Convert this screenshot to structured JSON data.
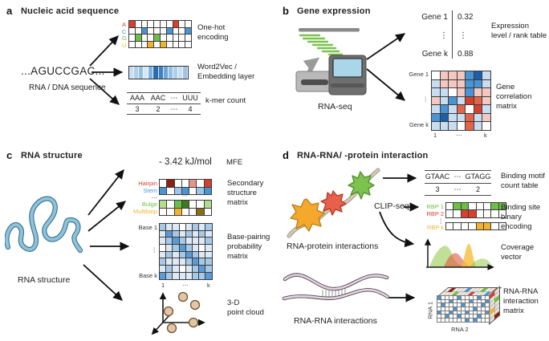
{
  "palette": {
    "w": "#ffffff",
    "R": "#d6402c",
    "R2": "#e2644a",
    "R3": "#8e2012",
    "r": "#e9928a",
    "pr": "#f4c8c0",
    "B": "#4a94d4",
    "B3": "#1e5fa9",
    "b": "#bcd8ee",
    "lb": "#9cc6e8",
    "pb": "#c8ddf0",
    "G": "#6cbf47",
    "G3": "#3c7a1e",
    "g": "#b3dc8f",
    "Y": "#f2b32c",
    "O": "#8a6d14",
    "p1": "#ddeaf6",
    "p2": "#a6c9e8",
    "p3": "#5b9bd5"
  },
  "panels": {
    "a": {
      "tag": "a",
      "title": "Nucleic acid sequence",
      "sequence": "...AGUCCGAC...",
      "sequence_caption": "RNA / DNA sequence",
      "onehot": {
        "label": "One-hot\nencoding",
        "row_labels": [
          "A",
          "C",
          "G",
          "U"
        ],
        "grid": {
          "cw": 7.8,
          "ch": 8.6,
          "cells": [
            [
              "R",
              "w",
              "w",
              "w",
              "w",
              "w",
              "w",
              "R",
              "w",
              "w"
            ],
            [
              "w",
              "w",
              "B",
              "w",
              "w",
              "w",
              "B",
              "w",
              "w",
              "B"
            ],
            [
              "w",
              "G",
              "w",
              "w",
              "G",
              "w",
              "w",
              "w",
              "w",
              "w"
            ],
            [
              "w",
              "w",
              "w",
              "Y",
              "w",
              "Y",
              "w",
              "w",
              "w",
              "w"
            ]
          ]
        }
      },
      "word2vec": {
        "label": "Word2Vec /\nEmbedding layer",
        "grid": {
          "cw": 6.1,
          "ch": 15,
          "cells": [
            [
              "#c9def2",
              "#aecfea",
              "#93c0e2",
              "#d5e6f5",
              "#7fb2dd",
              "#2b6cb0",
              "#3f80c0",
              "#6da6d6",
              "#93c0e2",
              "#aecfea",
              "#c9def2",
              "#9cc4e6"
            ]
          ]
        }
      },
      "kmer": {
        "headers": [
          "AAA",
          "AAC",
          "⋯",
          "UUU"
        ],
        "values": [
          "3",
          "2",
          "⋯",
          "4"
        ],
        "label": "k-mer count"
      }
    },
    "b": {
      "tag": "b",
      "title": "Gene expression",
      "machine_label": "RNA-seq",
      "expression": {
        "rows": [
          [
            "Gene 1",
            "0.32"
          ],
          [
            "⋮",
            "⋮"
          ],
          [
            "Gene k",
            "0.88"
          ]
        ],
        "label": "Expression\nlevel / rank table"
      },
      "correlation": {
        "row_labels": [
          "Gene 1",
          "⋮",
          "Gene k"
        ],
        "col_labels": [
          "1",
          "⋯",
          "k"
        ],
        "label": "Gene correlation\nmatrix",
        "grid": {
          "cw": 10.5,
          "ch": 10.5,
          "cells": [
            [
              "w",
              "pr",
              "pr",
              "pr",
              "B",
              "B3",
              "pb"
            ],
            [
              "pb",
              "pr",
              "pr",
              "pr",
              "B",
              "B",
              "pb"
            ],
            [
              "pb",
              "pb",
              "w",
              "pr",
              "B",
              "pr",
              "pr"
            ],
            [
              "pr",
              "pb",
              "B",
              "pb",
              "R",
              "R2",
              "pr"
            ],
            [
              "pb",
              "B",
              "pb",
              "R2",
              "w",
              "R",
              "pb"
            ],
            [
              "B",
              "B3",
              "pb",
              "pb",
              "R2",
              "pb",
              "pr"
            ],
            [
              "pb",
              "pb",
              "pb",
              "w",
              "R2",
              "pb",
              "w"
            ]
          ]
        }
      }
    },
    "c": {
      "tag": "c",
      "title": "RNA structure",
      "structure_label": "RNA structure",
      "mfe": {
        "value": "- 3.42 kJ/mol",
        "label": "MFE"
      },
      "secondary": {
        "row_labels": [
          "Hairpin",
          "Stem",
          "⋯",
          "Bulge",
          "Multiloop"
        ],
        "dots": "⋯",
        "label": "Secondary\nstructure\nmatrix",
        "grid_top": {
          "cw": 9.3,
          "ch": 9.5,
          "cells": [
            [
              "w",
              "R3",
              "w",
              "w",
              "r",
              "w",
              "R"
            ],
            [
              "B",
              "w",
              "lb",
              "B",
              "w",
              "lb",
              "B"
            ]
          ]
        },
        "grid_bottom": {
          "cw": 9.3,
          "ch": 9.5,
          "cells": [
            [
              "g",
              "w",
              "G",
              "G3",
              "w",
              "w",
              "g"
            ],
            [
              "w",
              "w",
              "Y",
              "w",
              "w",
              "O",
              "w"
            ]
          ]
        }
      },
      "bpp": {
        "row_labels": [
          "Base 1",
          "⋮",
          "Base k"
        ],
        "col_labels": [
          "1",
          "⋯",
          "k"
        ],
        "label": "Base-pairing\nprobability\nmatrix",
        "grid": {
          "cw": 8.2,
          "ch": 8.7,
          "cells": [
            [
              "p2",
              "p1",
              "p1",
              "w",
              "p1",
              "p2",
              "p1",
              "p2"
            ],
            [
              "p1",
              "p3",
              "p2",
              "p1",
              "p2",
              "p1",
              "p2",
              "p1"
            ],
            [
              "p1",
              "p2",
              "p3",
              "p2",
              "p1",
              "p1",
              "p1",
              "p2"
            ],
            [
              "w",
              "p1",
              "p2",
              "p3",
              "p2",
              "p1",
              "w",
              "p1"
            ],
            [
              "p1",
              "p2",
              "p1",
              "p2",
              "p3",
              "p2",
              "p1",
              "p1"
            ],
            [
              "p2",
              "p1",
              "p1",
              "p1",
              "p2",
              "p3",
              "p2",
              "p2"
            ],
            [
              "p1",
              "p2",
              "p1",
              "w",
              "p1",
              "p2",
              "p3",
              "p2"
            ],
            [
              "p3",
              "p2",
              "p1",
              "p1",
              "p1",
              "p2",
              "p2",
              "p3"
            ]
          ]
        }
      },
      "pointcloud": {
        "label": "3-D\npoint cloud"
      }
    },
    "d": {
      "tag": "d",
      "title": "RNA-RNA/ -protein interaction",
      "rna_protein_label": "RNA-protein interactions",
      "clipseq": "CLIP-seq",
      "motif": {
        "headers": [
          "GTAAC",
          "⋯",
          "GTAGG"
        ],
        "values": [
          "3",
          "⋯",
          "2"
        ],
        "label": "Binding motif\ncount table"
      },
      "binding": {
        "row_labels": [
          "RBP 1",
          "RBP 2",
          "⋮",
          "RBP k"
        ],
        "label": "Binding site\nbinary encoding",
        "rbp1": {
          "cw": 9.4,
          "ch": 9.3,
          "cells": [
            [
              "w",
              "G",
              "G",
              "w",
              "w",
              "w",
              "G",
              "G"
            ]
          ]
        },
        "rbp2": {
          "cw": 9.4,
          "ch": 9.3,
          "cells": [
            [
              "w",
              "w",
              "R",
              "R",
              "w",
              "w",
              "w",
              "w"
            ]
          ]
        },
        "rbpk": {
          "cw": 9.4,
          "ch": 9.3,
          "cells": [
            [
              "w",
              "w",
              "w",
              "w",
              "Y",
              "Y",
              "w",
              "w"
            ]
          ]
        }
      },
      "coverage": {
        "label": "Coverage\nvector"
      },
      "rna_rna_label": "RNA-RNA interactions",
      "cube": {
        "axis1": "RNA 1",
        "axis2": "RNA 2",
        "label": "RNA-RNA\ninteraction\nmatrix",
        "front": {
          "cw": 5,
          "ch": 4.7,
          "cells": [
            [
              "B",
              "w",
              "w",
              "w",
              "w",
              "B",
              "w",
              "w",
              "w",
              "w",
              "B",
              "w",
              "w"
            ],
            [
              "w",
              "w",
              "w",
              "B",
              "w",
              "w",
              "w",
              "w",
              "B",
              "w",
              "w",
              "w",
              "B"
            ],
            [
              "w",
              "B",
              "w",
              "w",
              "w",
              "w",
              "B",
              "w",
              "w",
              "w",
              "w",
              "B",
              "w"
            ],
            [
              "w",
              "w",
              "w",
              "w",
              "B",
              "w",
              "w",
              "w",
              "w",
              "B",
              "w",
              "w",
              "w"
            ],
            [
              "B",
              "w",
              "w",
              "B",
              "w",
              "w",
              "w",
              "B",
              "w",
              "w",
              "w",
              "w",
              "B"
            ],
            [
              "w",
              "w",
              "B",
              "w",
              "w",
              "B",
              "w",
              "w",
              "w",
              "w",
              "B",
              "w",
              "w"
            ],
            [
              "w",
              "w",
              "w",
              "w",
              "w",
              "w",
              "w",
              "B",
              "w",
              "B",
              "w",
              "w",
              "w"
            ]
          ]
        },
        "top_specks": {
          "cw": 5,
          "ch": 5,
          "items": [
            [
              1,
              0,
              "R3"
            ],
            [
              3,
              1,
              "G"
            ],
            [
              5,
              0,
              "B"
            ],
            [
              7,
              1,
              "R"
            ],
            [
              9,
              0,
              "G"
            ],
            [
              11,
              1,
              "B"
            ],
            [
              12,
              0,
              "R"
            ]
          ]
        },
        "side_specks": {
          "cw": 6,
          "ch": 5,
          "items": [
            [
              0,
              0,
              "R"
            ],
            [
              1,
              2,
              "G"
            ],
            [
              0,
              4,
              "Y"
            ],
            [
              1,
              6,
              "R3"
            ]
          ]
        }
      }
    }
  }
}
